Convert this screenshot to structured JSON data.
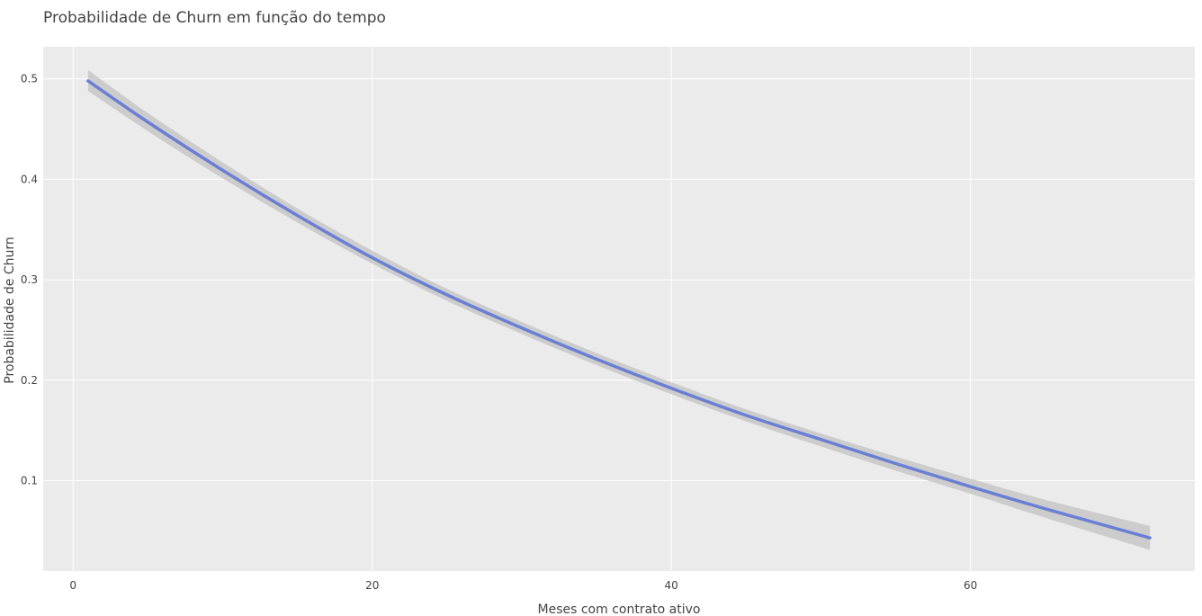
{
  "chart_data": {
    "type": "line",
    "title": "Probabilidade de Churn em função do tempo",
    "xlabel": "Meses com contrato ativo",
    "ylabel": "Probabilidade de Churn",
    "xlim": [
      -2,
      75
    ],
    "ylim": [
      0.01,
      0.532
    ],
    "x_ticks": [
      0,
      20,
      40,
      60
    ],
    "y_ticks": [
      0.1,
      0.2,
      0.3,
      0.4,
      0.5
    ],
    "grid": true,
    "legend": "none",
    "colors": {
      "panel_background": "#ebebeb",
      "grid": "#ffffff",
      "line": "#6a7fd4",
      "ribbon": "#c9c9c9",
      "text": "#444444"
    },
    "series": [
      {
        "x": [
          1,
          5,
          10,
          15,
          20,
          25,
          30,
          35,
          40,
          45,
          50,
          55,
          60,
          65,
          72
        ],
        "values": [
          0.498,
          0.457,
          0.409,
          0.364,
          0.322,
          0.285,
          0.252,
          0.221,
          0.192,
          0.165,
          0.141,
          0.117,
          0.094,
          0.072,
          0.043
        ],
        "ci_lower": [
          0.488,
          0.448,
          0.401,
          0.357,
          0.316,
          0.279,
          0.246,
          0.215,
          0.186,
          0.159,
          0.134,
          0.11,
          0.087,
          0.063,
          0.031
        ],
        "ci_upper": [
          0.509,
          0.466,
          0.417,
          0.371,
          0.329,
          0.291,
          0.258,
          0.227,
          0.198,
          0.171,
          0.147,
          0.124,
          0.102,
          0.081,
          0.055
        ]
      }
    ]
  }
}
